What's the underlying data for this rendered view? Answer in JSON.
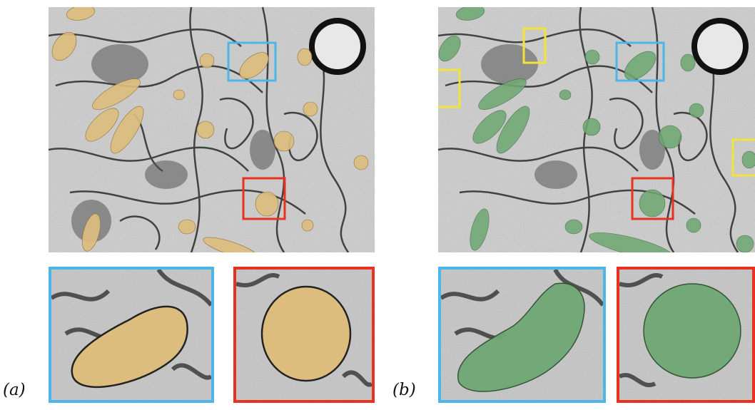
{
  "figure": {
    "panels": [
      {
        "id": "a",
        "label": "(a)",
        "mask_color": "#dcbd7e",
        "zoom_colors": [
          "#4db5ea",
          "#e8311f"
        ]
      },
      {
        "id": "b",
        "label": "(b)",
        "mask_color": "#6fa874",
        "zoom_colors": [
          "#4db5ea",
          "#e8311f"
        ],
        "extra_box_color": "#f2e23a"
      }
    ]
  }
}
